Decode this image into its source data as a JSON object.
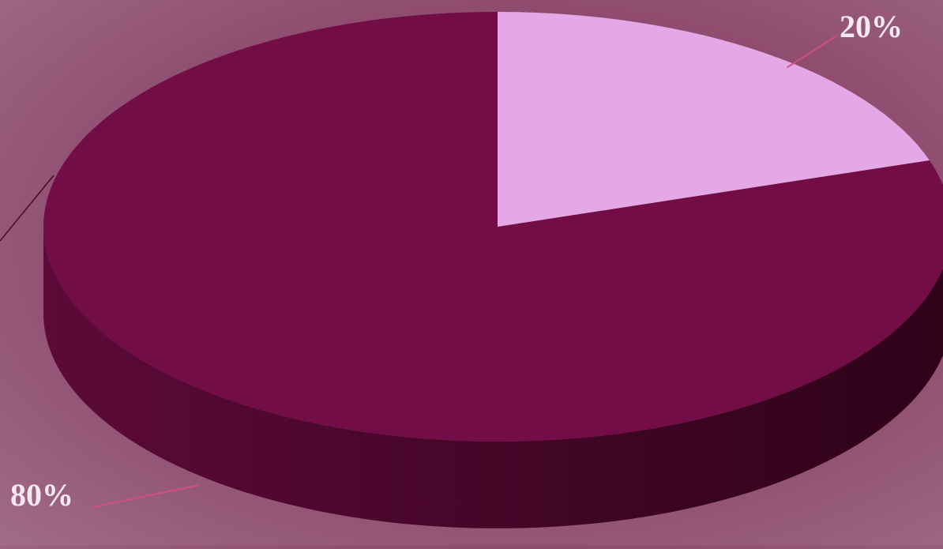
{
  "chart_data": {
    "type": "pie",
    "style": "3d",
    "categories": [
      "20%",
      "80%"
    ],
    "values": [
      20,
      80
    ],
    "slice_labels": [
      "20%",
      "80%"
    ],
    "colors": {
      "slice_small": "#e5a8e6",
      "slice_large": "#720e45",
      "side_light": "#5c0a38",
      "side_dark": "#2e0218",
      "leader_line": "#d0507e",
      "label_text": "#f6e8ef"
    }
  }
}
